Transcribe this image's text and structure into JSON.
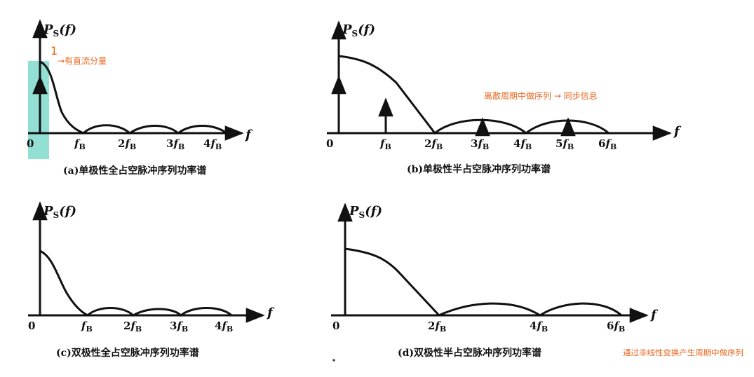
{
  "panels": {
    "a": {
      "ylabel": "P",
      "ylabel_sub": "S",
      "ylabel_arg": "(f)",
      "xlabel": "f",
      "origin": "0",
      "ticks": [
        "f_B",
        "2f_B",
        "3f_B",
        "4f_B"
      ],
      "caption": "(a)单极性全占空脉冲序列功率谱",
      "impulse_label": "1",
      "annotation": "→有直流分量"
    },
    "b": {
      "ylabel": "P",
      "ylabel_sub": "S",
      "ylabel_arg": "(f)",
      "xlabel": "f",
      "origin": "0",
      "ticks": [
        "f_B",
        "2f_B",
        "3f_B",
        "4f_B",
        "5f_B",
        "6f_B"
      ],
      "caption": "(b)单极性半占空脉冲序列功率谱",
      "annotation": "离散周期中做序列 → 同步信息"
    },
    "c": {
      "ylabel": "P",
      "ylabel_sub": "S",
      "ylabel_arg": "(f)",
      "xlabel": "f",
      "origin": "0",
      "ticks": [
        "f_B",
        "2f_B",
        "3f_B",
        "4f_B"
      ],
      "caption": "(c)双极性全占空脉冲序列功率谱"
    },
    "d": {
      "ylabel": "P",
      "ylabel_sub": "S",
      "ylabel_arg": "(f)",
      "xlabel": "f",
      "origin": "0",
      "ticks": [
        "2f_B",
        "4f_B",
        "6f_B"
      ],
      "caption": "(d)双极性半占空脉冲序列功率谱",
      "annotation": "通过非线性变换产生周期中做序列"
    }
  },
  "colors": {
    "ink": "#111111",
    "annotation": "#e8641a",
    "highlight": "#7fd9cc"
  }
}
